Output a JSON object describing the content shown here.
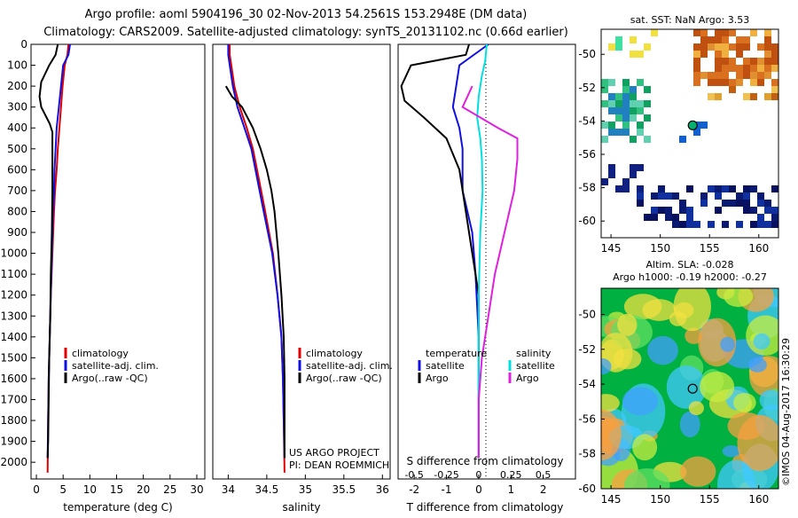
{
  "header": {
    "line1": "Argo profile: aoml 5904196_30 02-Nov-2013 54.2561S 153.2948E (DM data)",
    "line2": "Climatology: CARS2009. Satellite-adjusted climatology: synTS_20131102.nc (0.66d earlier)"
  },
  "colors": {
    "climatology": "#e00000",
    "satellite": "#1010e0",
    "argo": "#000000",
    "sat_salinity": "#00e0e0",
    "argo_salinity": "#e020e0"
  },
  "chart_data": [
    {
      "type": "line",
      "id": "temperature",
      "xlabel": "temperature (deg C)",
      "ylabel": "",
      "xlim": [
        -1,
        31.5
      ],
      "ylim": [
        2080,
        0
      ],
      "xticks": [
        "0",
        "5",
        "10",
        "15",
        "20",
        "25",
        "30"
      ],
      "yticks": [
        "0",
        "100",
        "200",
        "300",
        "400",
        "500",
        "600",
        "700",
        "800",
        "900",
        "1000",
        "1100",
        "1200",
        "1300",
        "1400",
        "1500",
        "1600",
        "1700",
        "1800",
        "1900",
        "2000"
      ],
      "legend": [
        "climatology",
        "satellite-adj. clim.",
        "Argo(..raw -QC)"
      ],
      "series": [
        {
          "name": "climatology",
          "color": "#e00000",
          "points": [
            [
              6.0,
              0
            ],
            [
              5.8,
              50
            ],
            [
              5.3,
              100
            ],
            [
              4.9,
              200
            ],
            [
              4.6,
              300
            ],
            [
              4.3,
              400
            ],
            [
              4.0,
              500
            ],
            [
              3.8,
              600
            ],
            [
              3.5,
              700
            ],
            [
              3.3,
              800
            ],
            [
              3.0,
              1000
            ],
            [
              2.7,
              1200
            ],
            [
              2.5,
              1400
            ],
            [
              2.3,
              1600
            ],
            [
              2.2,
              1800
            ],
            [
              2.1,
              2050
            ]
          ]
        },
        {
          "name": "satellite-adj. clim.",
          "color": "#1010e0",
          "points": [
            [
              6.3,
              0
            ],
            [
              6.0,
              50
            ],
            [
              5.0,
              100
            ],
            [
              4.6,
              200
            ],
            [
              4.2,
              300
            ],
            [
              3.8,
              400
            ],
            [
              3.6,
              500
            ],
            [
              3.4,
              600
            ],
            [
              3.3,
              700
            ],
            [
              3.1,
              800
            ],
            [
              2.9,
              1000
            ],
            [
              2.7,
              1200
            ],
            [
              2.5,
              1400
            ],
            [
              2.3,
              1600
            ],
            [
              2.2,
              1800
            ],
            [
              2.1,
              1980
            ]
          ]
        },
        {
          "name": "Argo(..raw -QC)",
          "color": "#000000",
          "points": [
            [
              4.0,
              0
            ],
            [
              3.6,
              50
            ],
            [
              2.4,
              100
            ],
            [
              0.9,
              180
            ],
            [
              0.6,
              250
            ],
            [
              0.9,
              300
            ],
            [
              2.5,
              380
            ],
            [
              3.0,
              420
            ],
            [
              3.0,
              500
            ],
            [
              3.0,
              700
            ],
            [
              2.9,
              900
            ],
            [
              2.7,
              1100
            ],
            [
              2.6,
              1300
            ],
            [
              2.4,
              1500
            ],
            [
              2.3,
              1700
            ],
            [
              2.2,
              1900
            ],
            [
              2.1,
              1980
            ]
          ]
        }
      ]
    },
    {
      "type": "line",
      "id": "salinity",
      "xlabel": "salinity",
      "ylabel": "",
      "xlim": [
        33.8,
        36.1
      ],
      "ylim": [
        2080,
        0
      ],
      "xticks": [
        "34",
        "34.5",
        "35",
        "35.5",
        "36"
      ],
      "legend": [
        "climatology",
        "satellite-adj. clim.",
        "Argo(..raw -QC)"
      ],
      "annotation": [
        "US ARGO PROJECT",
        "PI: DEAN ROEMMICH"
      ],
      "series": [
        {
          "name": "climatology",
          "color": "#e00000",
          "points": [
            [
              34.02,
              0
            ],
            [
              34.02,
              50
            ],
            [
              34.04,
              100
            ],
            [
              34.08,
              200
            ],
            [
              34.15,
              300
            ],
            [
              34.24,
              400
            ],
            [
              34.32,
              500
            ],
            [
              34.4,
              650
            ],
            [
              34.48,
              800
            ],
            [
              34.58,
              1000
            ],
            [
              34.64,
              1200
            ],
            [
              34.69,
              1400
            ],
            [
              34.71,
              1600
            ],
            [
              34.72,
              1800
            ],
            [
              34.73,
              2050
            ]
          ]
        },
        {
          "name": "satellite-adj. clim.",
          "color": "#1010e0",
          "points": [
            [
              34.0,
              0
            ],
            [
              34.0,
              50
            ],
            [
              34.02,
              100
            ],
            [
              34.06,
              200
            ],
            [
              34.12,
              300
            ],
            [
              34.21,
              400
            ],
            [
              34.3,
              500
            ],
            [
              34.38,
              650
            ],
            [
              34.46,
              800
            ],
            [
              34.57,
              1000
            ],
            [
              34.64,
              1200
            ],
            [
              34.69,
              1400
            ],
            [
              34.71,
              1600
            ],
            [
              34.72,
              1800
            ],
            [
              34.73,
              1980
            ]
          ]
        },
        {
          "name": "Argo(..raw -QC)",
          "color": "#000000",
          "points": [
            [
              33.97,
              200
            ],
            [
              34.05,
              250
            ],
            [
              34.18,
              300
            ],
            [
              34.32,
              400
            ],
            [
              34.42,
              500
            ],
            [
              34.5,
              600
            ],
            [
              34.56,
              700
            ],
            [
              34.6,
              800
            ],
            [
              34.65,
              1000
            ],
            [
              34.69,
              1200
            ],
            [
              34.72,
              1400
            ],
            [
              34.73,
              1600
            ],
            [
              34.73,
              1800
            ],
            [
              34.73,
              1980
            ]
          ]
        }
      ]
    },
    {
      "type": "line",
      "id": "difference",
      "xlabel": "T difference from climatology",
      "xlabel_top": "S difference from climatology",
      "xlim": [
        -2.5,
        3.0
      ],
      "ylim": [
        2080,
        0
      ],
      "xticks": [
        "-2",
        "-1",
        "0",
        "1",
        "2"
      ],
      "xticks_top": [
        "-0.5",
        "-0.25",
        "0",
        "0.25",
        "0.5"
      ],
      "legend_temperature": [
        "temperature",
        "satellite",
        "Argo"
      ],
      "legend_salinity": [
        "salinity",
        "satellite",
        "Argo"
      ],
      "series": [
        {
          "name": "temperature satellite",
          "color": "#1010e0",
          "points": [
            [
              0.3,
              0
            ],
            [
              -0.6,
              100
            ],
            [
              -0.7,
              200
            ],
            [
              -0.8,
              300
            ],
            [
              -0.6,
              400
            ],
            [
              -0.5,
              500
            ],
            [
              -0.5,
              700
            ],
            [
              -0.2,
              900
            ],
            [
              -0.1,
              1100
            ],
            [
              0.0,
              1400
            ],
            [
              0.0,
              1700
            ],
            [
              0.0,
              1980
            ]
          ]
        },
        {
          "name": "temperature Argo",
          "color": "#000000",
          "points": [
            [
              -0.3,
              0
            ],
            [
              -0.4,
              50
            ],
            [
              -2.1,
              100
            ],
            [
              -2.4,
              200
            ],
            [
              -2.3,
              270
            ],
            [
              -1.7,
              350
            ],
            [
              -1.0,
              450
            ],
            [
              -0.6,
              600
            ],
            [
              -0.3,
              900
            ],
            [
              0.0,
              1200
            ],
            [
              0.0,
              1600
            ],
            [
              0.0,
              1980
            ]
          ]
        },
        {
          "name": "salinity satellite",
          "color": "#00e0e0",
          "points": [
            [
              0.25,
              0
            ],
            [
              0.2,
              80
            ],
            [
              0.1,
              150
            ],
            [
              0.0,
              250
            ],
            [
              -0.05,
              350
            ],
            [
              0.05,
              450
            ],
            [
              0.1,
              550
            ],
            [
              0.12,
              700
            ],
            [
              0.05,
              900
            ],
            [
              0.0,
              1200
            ],
            [
              0.0,
              1600
            ],
            [
              0.0,
              1980
            ]
          ]
        },
        {
          "name": "salinity Argo",
          "color": "#e020e0",
          "points": [
            [
              -0.2,
              200
            ],
            [
              -0.5,
              300
            ],
            [
              0.6,
              400
            ],
            [
              1.2,
              450
            ],
            [
              1.2,
              550
            ],
            [
              1.1,
              700
            ],
            [
              0.8,
              900
            ],
            [
              0.5,
              1100
            ],
            [
              0.3,
              1300
            ],
            [
              0.1,
              1500
            ],
            [
              0.0,
              1700
            ],
            [
              0.0,
              1980
            ]
          ]
        }
      ]
    },
    {
      "type": "heatmap",
      "id": "sst_map",
      "title": "sat. SST: NaN Argo: 3.53",
      "xlim": [
        144,
        162
      ],
      "ylim": [
        -61,
        -48.5
      ],
      "xticks": [
        "145",
        "150",
        "155",
        "160"
      ],
      "yticks": [
        "-50",
        "-52",
        "-54",
        "-56",
        "-58",
        "-60"
      ],
      "marker": [
        153.29,
        -54.26
      ]
    },
    {
      "type": "heatmap",
      "id": "sla_map",
      "title": "Altim. SLA: -0.028",
      "subtitle": "Argo h1000: -0.19 h2000: -0.27",
      "xlim": [
        144,
        162
      ],
      "ylim": [
        -60,
        -48.5
      ],
      "xticks": [
        "145",
        "150",
        "155",
        "160"
      ],
      "yticks": [
        "-50",
        "-52",
        "-54",
        "-56",
        "-58",
        "-60"
      ],
      "marker": [
        153.29,
        -54.26
      ]
    }
  ],
  "footer": {
    "credit": "©IMOS 04-Aug-2017 16:30:29"
  }
}
